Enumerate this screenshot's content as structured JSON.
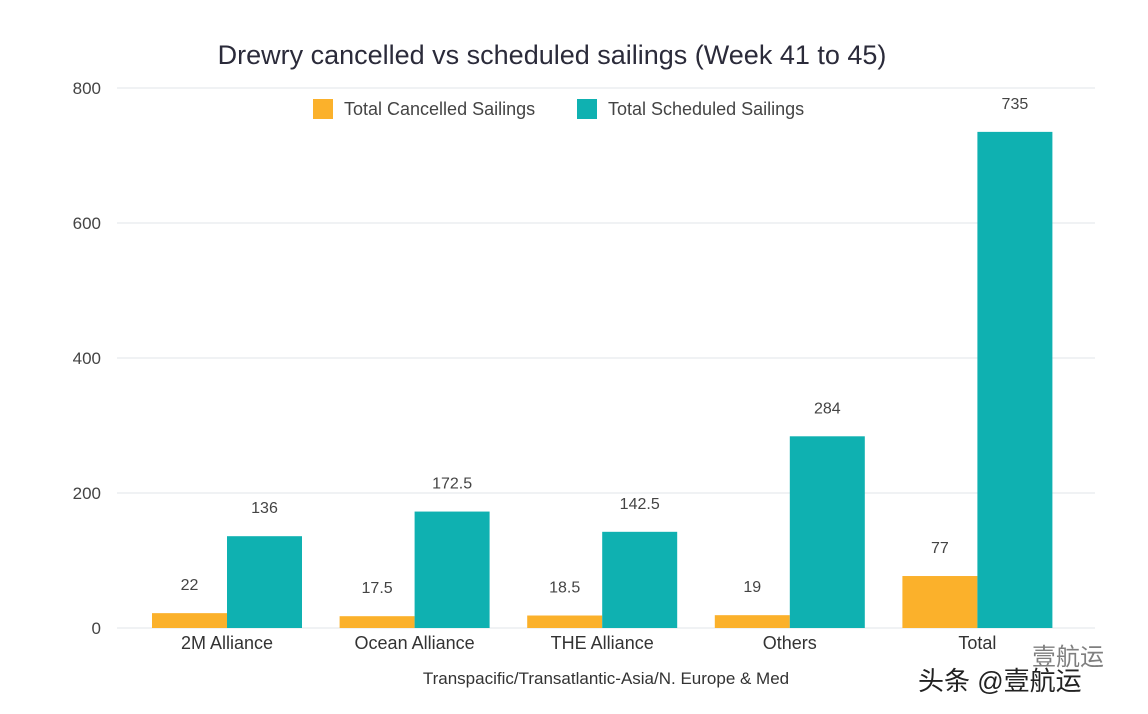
{
  "chart_data": {
    "type": "bar",
    "title": "Drewry cancelled vs scheduled sailings (Week 41 to 45)",
    "xlabel": "Transpacific/Transatlantic-Asia/N. Europe & Med",
    "ylabel": "",
    "ylim": [
      0,
      800
    ],
    "yticks": [
      0,
      200,
      400,
      600,
      800
    ],
    "grid": true,
    "legend_position": "top",
    "categories": [
      "2M Alliance",
      "Ocean Alliance",
      "THE Alliance",
      "Others",
      "Total"
    ],
    "series": [
      {
        "name": "Total Cancelled Sailings",
        "color": "#fbb12b",
        "values": [
          22,
          17.5,
          18.5,
          19,
          77
        ],
        "labels": [
          "22",
          "17.5",
          "18.5",
          "19",
          "77"
        ]
      },
      {
        "name": "Total Scheduled Sailings",
        "color": "#0fb1b1",
        "values": [
          136,
          172.5,
          142.5,
          284,
          735
        ],
        "labels": [
          "136",
          "172.5",
          "142.5",
          "284",
          "735"
        ]
      }
    ]
  },
  "watermark": {
    "text": "头条 @壹航运",
    "dim_text": "壹航运"
  }
}
